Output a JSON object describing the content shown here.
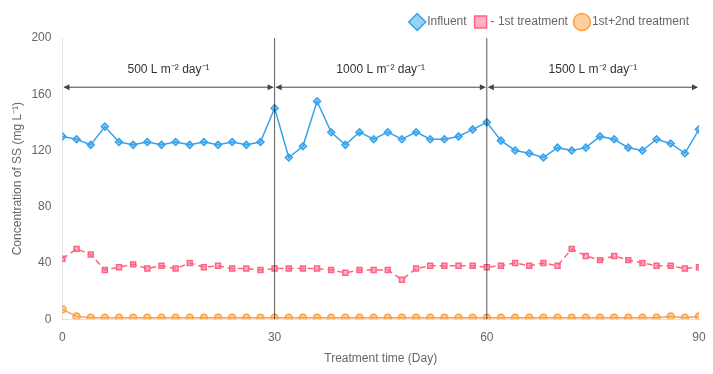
{
  "chart_data": {
    "type": "line",
    "x_label": "Treatment time (Day)",
    "y_label": "Concentration of SS (mg L⁻¹)",
    "x": [
      0,
      2,
      4,
      6,
      8,
      10,
      12,
      14,
      16,
      18,
      20,
      22,
      24,
      26,
      28,
      30,
      32,
      34,
      36,
      38,
      40,
      42,
      44,
      46,
      48,
      50,
      52,
      54,
      56,
      58,
      60,
      62,
      64,
      66,
      68,
      70,
      72,
      74,
      76,
      78,
      80,
      82,
      84,
      86,
      88,
      90
    ],
    "series": [
      {
        "name": "Influent",
        "marker": "diamond",
        "line_style": "solid",
        "values": [
          130,
          128,
          124,
          137,
          126,
          124,
          126,
          124,
          126,
          124,
          126,
          124,
          126,
          124,
          126,
          150,
          115,
          123,
          155,
          133,
          124,
          133,
          128,
          133,
          128,
          133,
          128,
          128,
          130,
          135,
          140,
          127,
          120,
          118,
          115,
          122,
          120,
          122,
          130,
          128,
          122,
          120,
          128,
          125,
          118,
          135
        ]
      },
      {
        "name": "- 1st treatment",
        "marker": "square",
        "line_style": "dashed",
        "values": [
          43,
          50,
          46,
          35,
          37,
          39,
          36,
          38,
          36,
          40,
          37,
          38,
          36,
          36,
          35,
          36,
          36,
          36,
          36,
          35,
          33,
          35,
          35,
          35,
          28,
          36,
          38,
          38,
          38,
          38,
          37,
          38,
          40,
          38,
          40,
          38,
          50,
          45,
          42,
          45,
          42,
          40,
          38,
          38,
          36,
          37
        ]
      },
      {
        "name": "1st+2nd treatment",
        "marker": "circle",
        "line_style": "solid",
        "values": [
          7,
          2,
          1,
          1,
          1,
          1,
          1,
          1,
          1,
          1,
          1,
          1,
          1,
          1,
          1,
          1,
          1,
          1,
          1,
          1,
          1,
          1,
          1,
          1,
          1,
          1,
          1,
          1,
          1,
          1,
          1,
          1,
          1,
          1,
          1,
          1,
          1,
          1,
          1,
          1,
          1,
          1,
          1,
          2,
          1,
          2
        ]
      }
    ],
    "xlim": [
      0,
      90
    ],
    "ylim": [
      0,
      200
    ],
    "xticks": [
      0,
      30,
      60,
      90
    ],
    "yticks": [
      0,
      40,
      80,
      120,
      160,
      200
    ],
    "vlines": [
      30,
      60
    ],
    "annotations": [
      {
        "text": "500 L m⁻² day⁻¹",
        "x": 15,
        "y": 173,
        "arrow": {
          "from": 0,
          "to": 30,
          "y": 165
        }
      },
      {
        "text": "1000 L m⁻² day⁻¹",
        "x": 45,
        "y": 173,
        "arrow": {
          "from": 30,
          "to": 60,
          "y": 165
        }
      },
      {
        "text": "1500 L m⁻² day⁻¹",
        "x": 75,
        "y": 173,
        "arrow": {
          "from": 60,
          "to": 90,
          "y": 165
        }
      }
    ],
    "legend": "upper right",
    "grid": false
  }
}
